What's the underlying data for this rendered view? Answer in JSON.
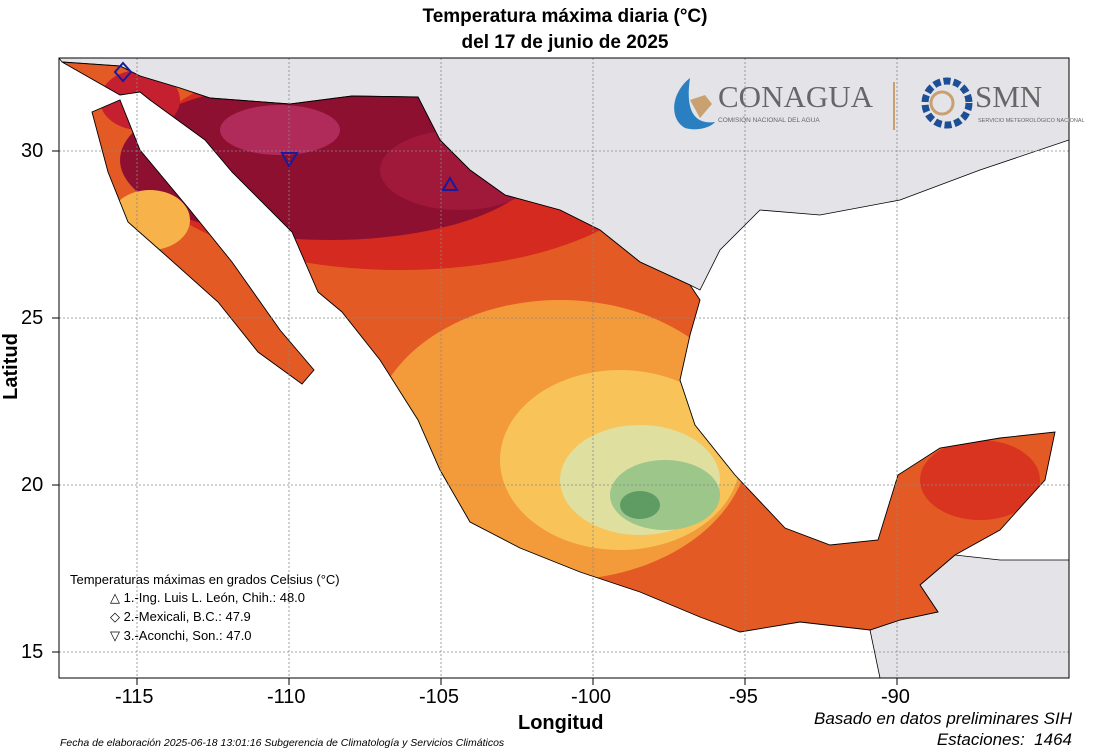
{
  "title": {
    "line1": "Temperatura máxima diaria (°C)",
    "line2": "del 17 de junio de 2025"
  },
  "axes": {
    "xlabel": "Longitud",
    "ylabel": "Latitud",
    "xticks": [
      "-115",
      "-110",
      "-105",
      "-100",
      "-95",
      "-90"
    ],
    "yticks": [
      "30",
      "25",
      "20",
      "15"
    ]
  },
  "logos": {
    "conagua": "CONAGUA",
    "conagua_sub": "COMISIÓN NACIONAL DEL AGUA",
    "smn": "SMN",
    "smn_sub": "SERVICIO METEOROLÓGICO NACIONAL"
  },
  "legend": {
    "title": "Temperaturas máximas en grados Celsius (°C)",
    "items": [
      {
        "symbol": "△",
        "label": "1.-Ing. Luis L. León, Chih.: 48.0"
      },
      {
        "symbol": "◇",
        "label": "2.-Mexicali, B.C.: 47.9"
      },
      {
        "symbol": "▽",
        "label": "3.-Aconchi, Son.: 47.0"
      }
    ]
  },
  "footer": {
    "left": "Fecha de elaboración 2025-06-18 13:01:16 Subgerencia de Climatología y Servicios Climáticos",
    "right1": "Basado en datos preliminares SIH",
    "right2": "Estaciones:  1464"
  },
  "colors": {
    "hottest": "#8e1030",
    "hot": "#d42a1f",
    "warm": "#ec6a2a",
    "mild": "#f8b24a",
    "cool": "#9cc68a",
    "foreign_land": "#e4e3e8"
  }
}
